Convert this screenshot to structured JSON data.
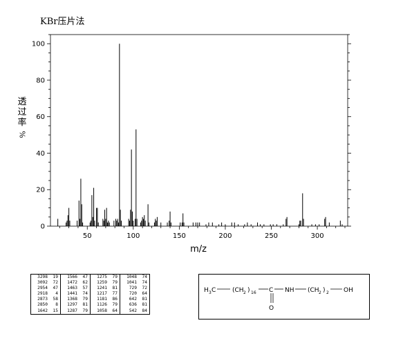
{
  "header": {
    "title": "KBr压片法"
  },
  "axis": {
    "ylabel": "透过率",
    "yunit": "%",
    "xlabel": "m/z"
  },
  "chart_data": {
    "type": "bar",
    "xlim": [
      10,
      333
    ],
    "ylim": [
      0,
      105
    ],
    "x_ticks": [
      50,
      100,
      150,
      200,
      250,
      300
    ],
    "y_ticks": [
      0,
      20,
      40,
      60,
      80,
      100
    ],
    "xlabel": "m/z",
    "ylabel": "透过率 %",
    "peaks": [
      [
        18,
        4
      ],
      [
        27,
        2
      ],
      [
        28,
        3
      ],
      [
        29,
        6
      ],
      [
        30,
        10
      ],
      [
        31,
        3
      ],
      [
        39,
        3
      ],
      [
        41,
        14
      ],
      [
        42,
        4
      ],
      [
        43,
        26
      ],
      [
        44,
        12
      ],
      [
        45,
        2
      ],
      [
        53,
        2
      ],
      [
        54,
        3
      ],
      [
        55,
        17
      ],
      [
        56,
        5
      ],
      [
        57,
        21
      ],
      [
        58,
        3
      ],
      [
        60,
        10
      ],
      [
        61,
        10
      ],
      [
        62,
        2
      ],
      [
        67,
        4
      ],
      [
        68,
        3
      ],
      [
        69,
        9
      ],
      [
        70,
        4
      ],
      [
        71,
        10
      ],
      [
        72,
        2
      ],
      [
        73,
        3
      ],
      [
        74,
        2
      ],
      [
        79,
        3
      ],
      [
        81,
        4
      ],
      [
        82,
        3
      ],
      [
        83,
        4
      ],
      [
        84,
        2
      ],
      [
        85,
        100
      ],
      [
        86,
        9
      ],
      [
        87,
        3
      ],
      [
        95,
        4
      ],
      [
        96,
        3
      ],
      [
        97,
        9
      ],
      [
        98,
        42
      ],
      [
        99,
        8
      ],
      [
        100,
        3
      ],
      [
        102,
        4
      ],
      [
        103,
        53
      ],
      [
        104,
        4
      ],
      [
        108,
        2
      ],
      [
        109,
        3
      ],
      [
        110,
        5
      ],
      [
        111,
        4
      ],
      [
        112,
        6
      ],
      [
        113,
        3
      ],
      [
        116,
        12
      ],
      [
        117,
        2
      ],
      [
        123,
        2
      ],
      [
        124,
        4
      ],
      [
        125,
        3
      ],
      [
        126,
        5
      ],
      [
        130,
        2
      ],
      [
        137,
        2
      ],
      [
        139,
        3
      ],
      [
        140,
        8
      ],
      [
        141,
        2
      ],
      [
        151,
        2
      ],
      [
        153,
        2
      ],
      [
        154,
        7
      ],
      [
        155,
        2
      ],
      [
        165,
        2
      ],
      [
        168,
        2
      ],
      [
        170,
        2
      ],
      [
        172,
        2
      ],
      [
        179,
        1
      ],
      [
        182,
        2
      ],
      [
        186,
        2
      ],
      [
        193,
        1
      ],
      [
        196,
        2
      ],
      [
        200,
        1
      ],
      [
        207,
        2
      ],
      [
        210,
        2
      ],
      [
        214,
        1
      ],
      [
        221,
        1
      ],
      [
        224,
        2
      ],
      [
        228,
        1
      ],
      [
        235,
        2
      ],
      [
        238,
        1
      ],
      [
        242,
        1
      ],
      [
        249,
        1
      ],
      [
        252,
        1
      ],
      [
        256,
        1
      ],
      [
        263,
        1
      ],
      [
        266,
        4
      ],
      [
        267,
        5
      ],
      [
        280,
        1
      ],
      [
        281,
        3
      ],
      [
        282,
        3
      ],
      [
        284,
        18
      ],
      [
        285,
        4
      ],
      [
        294,
        1
      ],
      [
        298,
        1
      ],
      [
        302,
        1
      ],
      [
        308,
        4
      ],
      [
        309,
        5
      ],
      [
        313,
        2
      ],
      [
        325,
        3
      ],
      [
        327,
        1
      ]
    ]
  },
  "peak_table": {
    "columns": [
      [
        [
          "3298",
          "19"
        ],
        [
          "3092",
          "72"
        ],
        [
          "2954",
          "47"
        ],
        [
          "2918",
          "4"
        ],
        [
          "2873",
          "58"
        ],
        [
          "2850",
          "8"
        ],
        [
          "1642",
          "15"
        ]
      ],
      [
        [
          "1566",
          "47"
        ],
        [
          "1472",
          "62"
        ],
        [
          "1463",
          "57"
        ],
        [
          "1441",
          "74"
        ],
        [
          "1368",
          "79"
        ],
        [
          "1297",
          "81"
        ],
        [
          "1287",
          "79"
        ]
      ],
      [
        [
          "1275",
          "79"
        ],
        [
          "1259",
          "79"
        ],
        [
          "1241",
          "81"
        ],
        [
          "1217",
          "77"
        ],
        [
          "1181",
          "86"
        ],
        [
          "1126",
          "79"
        ],
        [
          "1058",
          "64"
        ]
      ],
      [
        [
          "1048",
          "74"
        ],
        [
          "1041",
          "74"
        ],
        [
          "729",
          "72"
        ],
        [
          "720",
          "64"
        ],
        [
          "642",
          "81"
        ],
        [
          "636",
          "81"
        ],
        [
          "542",
          "84"
        ]
      ]
    ]
  },
  "structure": {
    "h3c": "H",
    "h3c_sub": "3",
    "h3c_c": "C",
    "ch2_a": "(CH",
    "ch2_a_sub": "2",
    "ch2_a_close": ")",
    "ch2_a_n": "16",
    "carbonyl_c": "C",
    "nh": "NH",
    "ch2_b": "(CH",
    "ch2_b_sub": "2",
    "ch2_b_close": ")",
    "ch2_b_n": "2",
    "oh": "OH",
    "oxygen": "O"
  }
}
